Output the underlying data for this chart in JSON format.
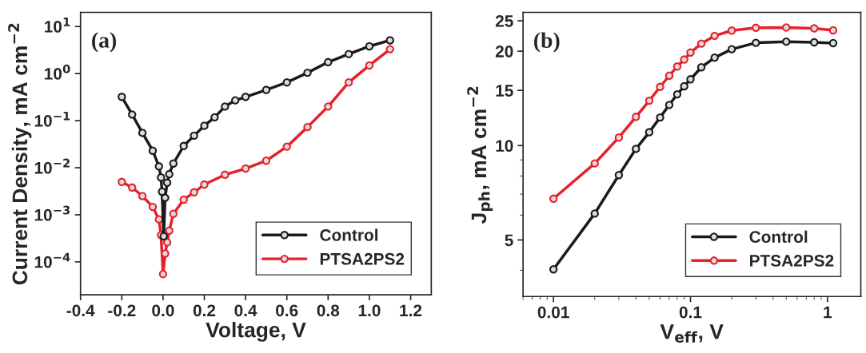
{
  "chart_data": [
    {
      "type": "line",
      "xlabel": "Voltage, V",
      "ylabel": "Current Density, mA cm$^{−2}$",
      "annotations": [
        "(a)"
      ],
      "log": "y",
      "marker": "circle",
      "legend": "lower right",
      "grid": false,
      "xlim": [
        -0.4,
        1.3
      ],
      "xticks": [
        -0.4,
        -0.2,
        {
          "value": 0,
          "label": "0.0"
        },
        0.2,
        0.4,
        0.6,
        0.8,
        {
          "value": 1,
          "label": "1.0"
        },
        1.2
      ],
      "ylim": [
        2e-05,
        20
      ],
      "yticks": [
        {
          "value": 0.0001,
          "label": "10$^{−4}$"
        },
        {
          "value": 0.001,
          "label": "10$^{−3}$"
        },
        {
          "value": 0.01,
          "label": "10$^{−2}$"
        },
        {
          "value": 0.1,
          "label": "10$^{−1}$"
        },
        {
          "value": 1,
          "label": "10$^{0}$"
        },
        {
          "value": 10,
          "label": "10$^{1}$"
        }
      ],
      "series": [
        {
          "name": "Control",
          "color": "#1a1a1a",
          "x": [
            -0.2,
            -0.15,
            -0.1,
            -0.05,
            -0.02,
            -0.01,
            -0.005,
            0.003,
            0.01,
            0.02,
            0.03,
            0.05,
            0.1,
            0.15,
            0.2,
            0.25,
            0.3,
            0.35,
            0.4,
            0.5,
            0.6,
            0.7,
            0.8,
            0.9,
            1.0,
            1.1
          ],
          "values": [
            0.32,
            0.135,
            0.055,
            0.023,
            0.0107,
            0.0062,
            0.0031,
            0.00035,
            0.0023,
            0.0048,
            0.0073,
            0.0123,
            0.029,
            0.048,
            0.078,
            0.118,
            0.2,
            0.27,
            0.32,
            0.45,
            0.65,
            1.04,
            1.75,
            2.6,
            3.8,
            5.1
          ]
        },
        {
          "name": "PTSA2PS2",
          "color": "#e8202a",
          "x": [
            -0.2,
            -0.15,
            -0.1,
            -0.05,
            -0.02,
            -0.01,
            0.0,
            0.01,
            0.02,
            0.03,
            0.05,
            0.1,
            0.15,
            0.2,
            0.3,
            0.4,
            0.5,
            0.6,
            0.7,
            0.8,
            0.9,
            1.0,
            1.1
          ],
          "values": [
            0.005,
            0.0038,
            0.0025,
            0.00147,
            0.0008,
            0.00037,
            5.5e-05,
            0.00015,
            0.00026,
            0.00046,
            0.00105,
            0.0021,
            0.003,
            0.0044,
            0.0071,
            0.0096,
            0.0141,
            0.028,
            0.073,
            0.2,
            0.65,
            1.49,
            3.3
          ]
        }
      ]
    },
    {
      "type": "line",
      "xlabel": "V$_{eff}$, V",
      "ylabel": "J$_{ph}$, mA cm$^{−2}$",
      "annotations": [
        "(b)"
      ],
      "log": "xy",
      "marker": "circle",
      "legend": "lower right",
      "grid": false,
      "xlim": [
        0.006,
        1.75
      ],
      "xticks": [
        0.01,
        0.1,
        1
      ],
      "ylim": [
        3.3,
        26.6
      ],
      "yticks": [
        5,
        10,
        15,
        20,
        25
      ],
      "series": [
        {
          "name": "Control",
          "color": "#1a1a1a",
          "x": [
            0.01,
            0.02,
            0.03,
            0.04,
            0.05,
            0.06,
            0.07,
            0.08,
            0.09,
            0.1,
            0.12,
            0.15,
            0.2,
            0.3,
            0.5,
            0.8,
            1.1
          ],
          "values": [
            4.03,
            6.07,
            8.05,
            9.76,
            11.03,
            12.29,
            13.48,
            14.57,
            15.46,
            16.27,
            17.77,
            19.08,
            20.29,
            21.27,
            21.45,
            21.35,
            21.22
          ]
        },
        {
          "name": "PTSA2PS2",
          "color": "#e8202a",
          "x": [
            0.01,
            0.02,
            0.03,
            0.04,
            0.05,
            0.06,
            0.07,
            0.08,
            0.09,
            0.1,
            0.12,
            0.15,
            0.2,
            0.3,
            0.5,
            0.8,
            1.1
          ],
          "values": [
            6.77,
            8.77,
            10.61,
            12.35,
            13.9,
            15.39,
            16.71,
            17.87,
            18.81,
            19.8,
            21.14,
            22.39,
            23.27,
            23.75,
            23.8,
            23.65,
            23.31
          ]
        }
      ]
    }
  ]
}
